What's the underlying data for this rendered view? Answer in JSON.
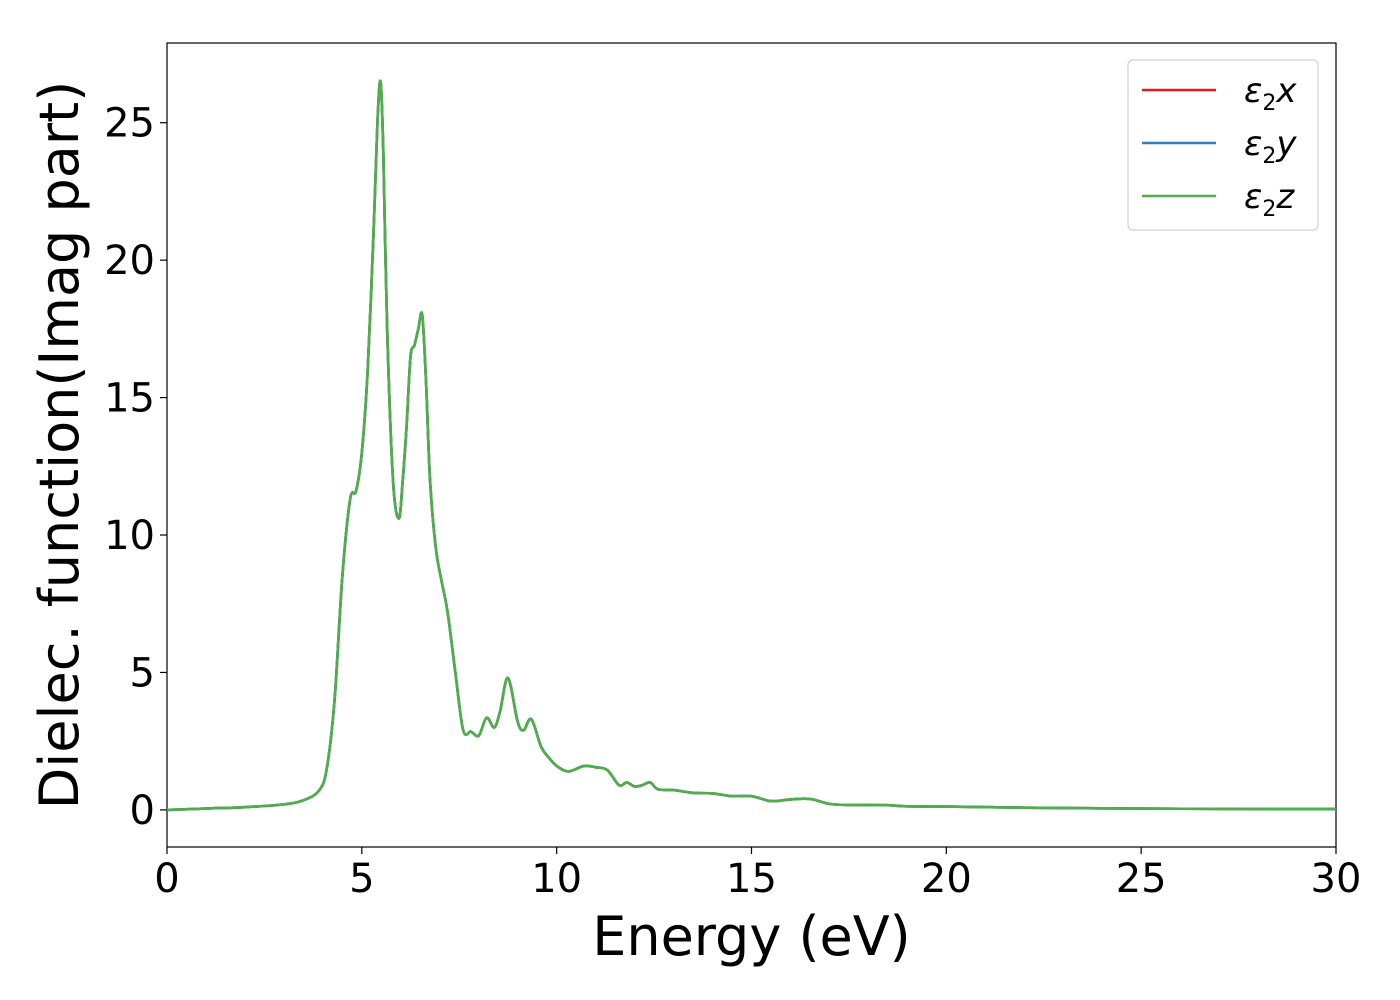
{
  "chart_data": {
    "type": "line",
    "xlabel": "Energy (eV)",
    "ylabel": "Dielec. function(Imag part)",
    "xlim": [
      0,
      30
    ],
    "ylim": [
      -1.35,
      27.9
    ],
    "xticks": [
      0,
      5,
      10,
      15,
      20,
      25,
      30
    ],
    "yticks": [
      0,
      5,
      10,
      15,
      20,
      25
    ],
    "grid": false,
    "legend_position": "top-right",
    "colors": {
      "x": "#e41a1c",
      "y": "#377eb8",
      "z": "#4daf4a"
    },
    "series": [
      {
        "name": "ε2x",
        "legend_main": "ε",
        "legend_sub": "2",
        "legend_tail": "x",
        "color": "#e41a1c"
      },
      {
        "name": "ε2y",
        "legend_main": "ε",
        "legend_sub": "2",
        "legend_tail": "y",
        "color": "#377eb8"
      },
      {
        "name": "ε2z",
        "legend_main": "ε",
        "legend_sub": "2",
        "legend_tail": "z",
        "color": "#4daf4a"
      }
    ],
    "x": [
      0,
      1,
      2,
      3,
      3.5,
      3.9,
      4.1,
      4.3,
      4.5,
      4.7,
      4.85,
      5.0,
      5.15,
      5.3,
      5.4,
      5.48,
      5.55,
      5.65,
      5.8,
      5.95,
      6.05,
      6.15,
      6.25,
      6.35,
      6.45,
      6.55,
      6.65,
      6.75,
      6.9,
      7.05,
      7.2,
      7.4,
      7.6,
      7.8,
      8.0,
      8.2,
      8.4,
      8.55,
      8.75,
      9.0,
      9.15,
      9.35,
      9.6,
      9.8,
      10.0,
      10.3,
      10.7,
      11.0,
      11.3,
      11.6,
      11.8,
      12.0,
      12.2,
      12.4,
      12.6,
      13.0,
      13.5,
      14.0,
      14.5,
      15.0,
      15.5,
      16.0,
      16.5,
      17.0,
      17.5,
      18.5,
      19.0,
      20.0,
      22.0,
      25.0,
      28.0,
      30.0
    ],
    "values": [
      0,
      0.05,
      0.1,
      0.2,
      0.35,
      0.7,
      1.5,
      4.0,
      8.5,
      11.3,
      11.6,
      13.0,
      16.0,
      21.0,
      25.0,
      26.5,
      24.0,
      17.5,
      12.0,
      10.6,
      12.0,
      14.0,
      16.5,
      16.9,
      17.5,
      18.0,
      15.5,
      12.0,
      9.5,
      8.3,
      7.2,
      5.0,
      2.9,
      2.85,
      2.7,
      3.35,
      3.0,
      3.6,
      4.8,
      3.2,
      2.9,
      3.3,
      2.3,
      1.9,
      1.6,
      1.4,
      1.6,
      1.55,
      1.45,
      0.9,
      1.0,
      0.85,
      0.9,
      1.0,
      0.75,
      0.72,
      0.62,
      0.6,
      0.5,
      0.5,
      0.32,
      0.38,
      0.4,
      0.22,
      0.18,
      0.17,
      0.13,
      0.12,
      0.08,
      0.05,
      0.03,
      0.03
    ]
  }
}
